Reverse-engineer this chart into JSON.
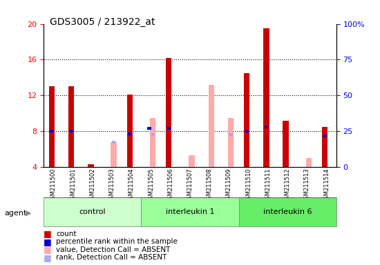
{
  "title": "GDS3005 / 213922_at",
  "samples": [
    "GSM211500",
    "GSM211501",
    "GSM211502",
    "GSM211503",
    "GSM211504",
    "GSM211505",
    "GSM211506",
    "GSM211507",
    "GSM211508",
    "GSM211509",
    "GSM211510",
    "GSM211511",
    "GSM211512",
    "GSM211513",
    "GSM211514"
  ],
  "count": [
    13.0,
    13.0,
    4.3,
    null,
    12.1,
    null,
    16.2,
    null,
    null,
    null,
    14.5,
    19.5,
    9.2,
    null,
    8.5
  ],
  "percentile_rank": [
    8.0,
    8.0,
    null,
    null,
    7.7,
    8.3,
    8.3,
    null,
    null,
    null,
    8.0,
    8.5,
    null,
    null,
    7.5
  ],
  "value_absent": [
    null,
    null,
    null,
    6.8,
    null,
    9.5,
    null,
    5.3,
    13.2,
    9.5,
    null,
    null,
    null,
    5.0,
    null
  ],
  "rank_absent": [
    null,
    null,
    null,
    6.8,
    null,
    7.6,
    null,
    null,
    null,
    7.6,
    null,
    null,
    null,
    null,
    null
  ],
  "ylim_left": [
    4,
    20
  ],
  "ylim_right": [
    0,
    100
  ],
  "yticks_left": [
    4,
    8,
    12,
    16,
    20
  ],
  "yticks_right": [
    0,
    25,
    50,
    75,
    100
  ],
  "ytick_labels_right": [
    "0",
    "25",
    "50",
    "75",
    "100%"
  ],
  "color_count": "#cc0000",
  "color_rank": "#0000cc",
  "color_value_absent": "#ffaaaa",
  "color_rank_absent": "#aaaaee",
  "groups": [
    {
      "label": "control",
      "color": "#ccffcc",
      "start": 0,
      "end": 4
    },
    {
      "label": "interleukin 1",
      "color": "#99ff99",
      "start": 5,
      "end": 9
    },
    {
      "label": "interleukin 6",
      "color": "#66ee66",
      "start": 10,
      "end": 14
    }
  ],
  "figsize": [
    5.5,
    3.84
  ],
  "dpi": 100
}
